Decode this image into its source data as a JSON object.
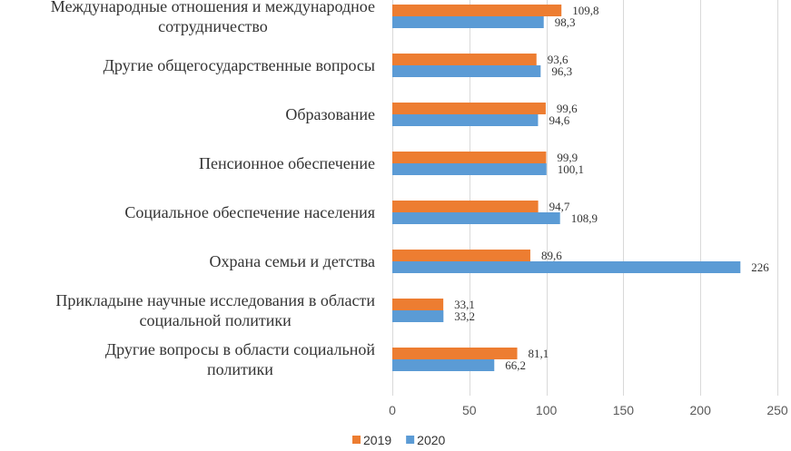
{
  "chart_data": {
    "type": "bar",
    "orientation": "horizontal",
    "categories": [
      [
        "Международные отношения и международное",
        "сотрудничество"
      ],
      [
        "Другие общегосударственные вопросы"
      ],
      [
        "Образование"
      ],
      [
        "Пенсионное обеспечение"
      ],
      [
        "Социальное обеспечение населения"
      ],
      [
        "Охрана семьи и детства"
      ],
      [
        "Прикладыне научные исследования в области",
        "социальной политики"
      ],
      [
        "Другие вопросы в области социальной",
        "политики"
      ]
    ],
    "series": [
      {
        "name": "2019",
        "color": "#ED7D31",
        "values": [
          109.8,
          93.6,
          99.6,
          99.9,
          94.7,
          89.6,
          33.1,
          81.1
        ],
        "labels": [
          "109,8",
          "93,6",
          "99,6",
          "99,9",
          "94,7",
          "89,6",
          "33,1",
          "81,1"
        ]
      },
      {
        "name": "2020",
        "color": "#5B9BD5",
        "values": [
          98.3,
          96.3,
          94.6,
          100.1,
          108.9,
          226,
          33.2,
          66.2
        ],
        "labels": [
          "98,3",
          "96,3",
          "94,6",
          "100,1",
          "108,9",
          "226",
          "33,2",
          "66,2"
        ]
      }
    ],
    "xlim": [
      0,
      250
    ],
    "xticks": [
      0,
      50,
      100,
      150,
      200,
      250
    ],
    "xtick_labels": [
      "0",
      "50",
      "100",
      "150",
      "200",
      "250"
    ],
    "grid": true,
    "legend": "bottom-center",
    "title": "",
    "xlabel": "",
    "ylabel": ""
  }
}
